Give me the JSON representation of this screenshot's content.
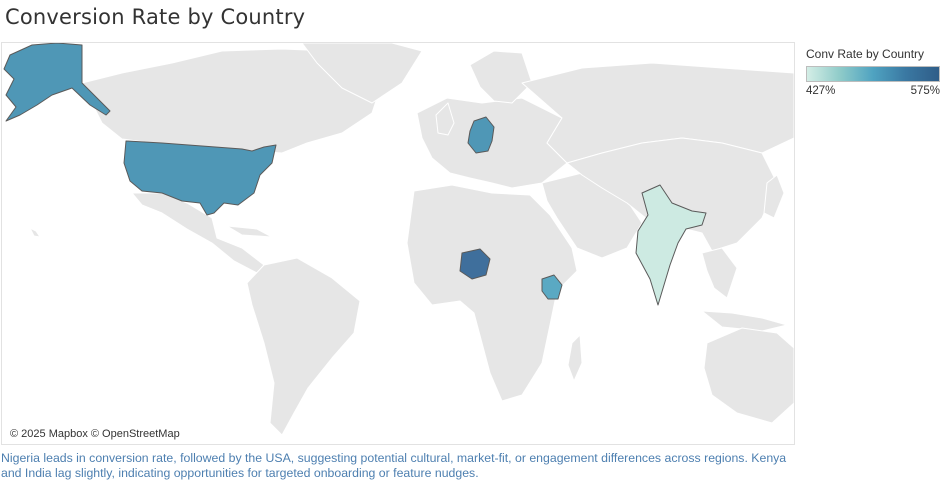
{
  "title": "Conversion Rate by Country",
  "map": {
    "attribution": "© 2025 Mapbox © OpenStreetMap",
    "land_color": "#e6e6e6",
    "border_color": "#ffffff",
    "highlighted_countries": [
      "United States",
      "Germany",
      "Nigeria",
      "Kenya",
      "India"
    ],
    "color_scale": {
      "low": "#d4eee6",
      "mid": "#4fa3c1",
      "high": "#2f5d88"
    }
  },
  "legend": {
    "title": "Conv Rate by Country",
    "min_label": "427%",
    "max_label": "575%"
  },
  "insight": "Nigeria leads in conversion rate, followed by the USA, suggesting potential cultural, market-fit, or engagement differences across regions. Kenya and India lag slightly, indicating opportunities for targeted onboarding or feature nudges."
}
